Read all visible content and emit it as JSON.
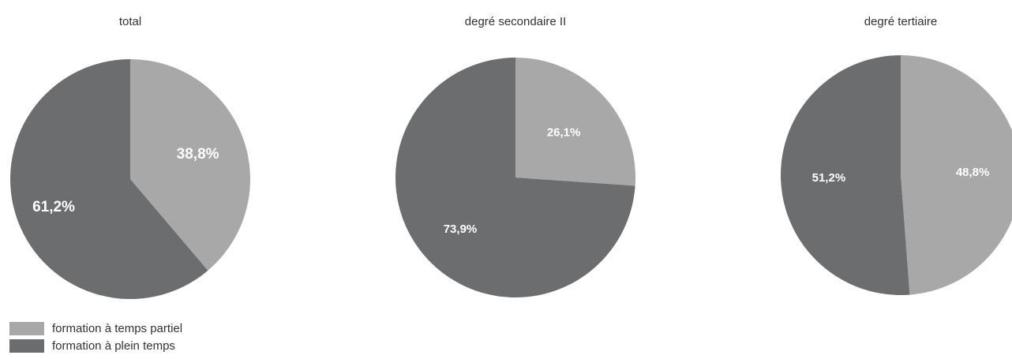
{
  "colors": {
    "partial": "#a8a8a8",
    "full": "#6c6d6f",
    "title_text": "#333333",
    "value_text": "#ffffff"
  },
  "legend": [
    {
      "label": "formation à temps partiel",
      "color": "#a8a8a8"
    },
    {
      "label": "formation à plein temps",
      "color": "#6c6d6f"
    }
  ],
  "chart_data": [
    {
      "type": "pie",
      "title": "total",
      "labels": [
        "formation à temps partiel",
        "formation à plein temps"
      ],
      "values": [
        38.8,
        61.2
      ],
      "value_labels": [
        "38,8%",
        "61,2%"
      ]
    },
    {
      "type": "pie",
      "title": "degré secondaire II",
      "labels": [
        "formation à temps partiel",
        "formation à plein temps"
      ],
      "values": [
        26.1,
        73.9
      ],
      "value_labels": [
        "26,1%",
        "73,9%"
      ]
    },
    {
      "type": "pie",
      "title": "degré tertiaire",
      "labels": [
        "formation à temps partiel",
        "formation à plein temps"
      ],
      "values": [
        48.8,
        51.2
      ],
      "value_labels": [
        "48,8%",
        "51,2%"
      ]
    }
  ]
}
